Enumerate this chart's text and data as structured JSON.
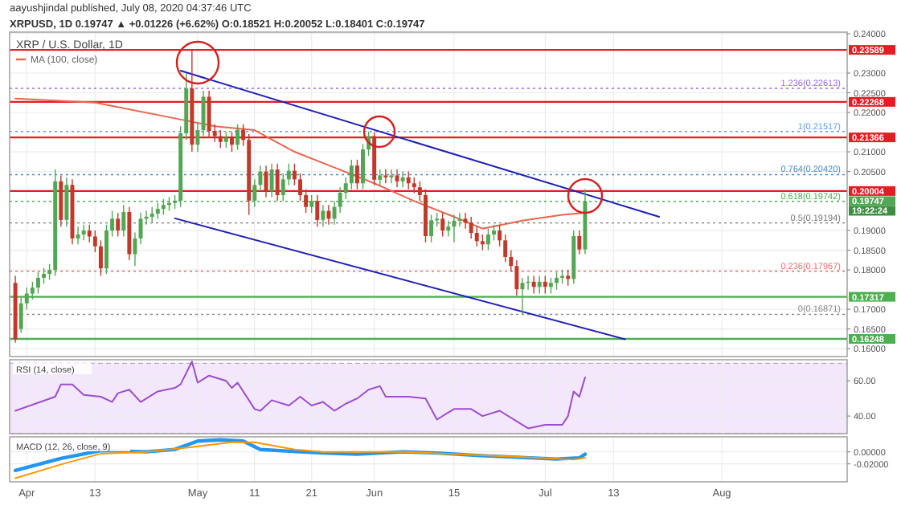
{
  "chart_data": [
    {
      "type": "candlestick",
      "title": "XRP / U.S. Dollar, 1D",
      "subtitle": "XRPUSD, 1D 0.19747 ▲ +0.01226 (+6.62%) O:0.18521 H:0.20052 L:0.18401 C:0.19747",
      "annotations": [
        "aayushjindal published, July 08, 2020 04:37:46 UTC",
        "0.19747",
        "19:22:24"
      ],
      "x": [
        "2020-03-30",
        "2020-03-31",
        "2020-04-01",
        "2020-04-02",
        "2020-04-03",
        "2020-04-04",
        "2020-04-05",
        "2020-04-06",
        "2020-04-07",
        "2020-04-08",
        "2020-04-09",
        "2020-04-10",
        "2020-04-11",
        "2020-04-12",
        "2020-04-13",
        "2020-04-14",
        "2020-04-15",
        "2020-04-16",
        "2020-04-17",
        "2020-04-18",
        "2020-04-19",
        "2020-04-20",
        "2020-04-21",
        "2020-04-22",
        "2020-04-23",
        "2020-04-24",
        "2020-04-25",
        "2020-04-26",
        "2020-04-27",
        "2020-04-28",
        "2020-04-29",
        "2020-04-30",
        "2020-05-01",
        "2020-05-02",
        "2020-05-03",
        "2020-05-04",
        "2020-05-05",
        "2020-05-06",
        "2020-05-07",
        "2020-05-08",
        "2020-05-09",
        "2020-05-10",
        "2020-05-11",
        "2020-05-12",
        "2020-05-13",
        "2020-05-14",
        "2020-05-15",
        "2020-05-16",
        "2020-05-17",
        "2020-05-18",
        "2020-05-19",
        "2020-05-20",
        "2020-05-21",
        "2020-05-22",
        "2020-05-23",
        "2020-05-24",
        "2020-05-25",
        "2020-05-26",
        "2020-05-27",
        "2020-05-28",
        "2020-05-29",
        "2020-05-30",
        "2020-05-31",
        "2020-06-01",
        "2020-06-02",
        "2020-06-03",
        "2020-06-04",
        "2020-06-05",
        "2020-06-06",
        "2020-06-07",
        "2020-06-08",
        "2020-06-09",
        "2020-06-10",
        "2020-06-11",
        "2020-06-12",
        "2020-06-13",
        "2020-06-14",
        "2020-06-15",
        "2020-06-16",
        "2020-06-17",
        "2020-06-18",
        "2020-06-19",
        "2020-06-20",
        "2020-06-21",
        "2020-06-22",
        "2020-06-23",
        "2020-06-24",
        "2020-06-25",
        "2020-06-26",
        "2020-06-27",
        "2020-06-28",
        "2020-06-29",
        "2020-06-30",
        "2020-07-01",
        "2020-07-02",
        "2020-07-03",
        "2020-07-04",
        "2020-07-05",
        "2020-07-06",
        "2020-07-07",
        "2020-07-08"
      ],
      "ohlc": [
        [
          0.1767,
          0.1785,
          0.1615,
          0.1624
        ],
        [
          0.165,
          0.173,
          0.164,
          0.1715
        ],
        [
          0.1715,
          0.1755,
          0.17,
          0.174
        ],
        [
          0.174,
          0.177,
          0.1725,
          0.1755
        ],
        [
          0.1755,
          0.1795,
          0.174,
          0.178
        ],
        [
          0.178,
          0.1805,
          0.1765,
          0.179
        ],
        [
          0.179,
          0.1815,
          0.1775,
          0.18
        ],
        [
          0.18,
          0.2055,
          0.1785,
          0.2025
        ],
        [
          0.2025,
          0.204,
          0.191,
          0.1927
        ],
        [
          0.1927,
          0.2035,
          0.191,
          0.2016
        ],
        [
          0.2016,
          0.203,
          0.1865,
          0.188
        ],
        [
          0.188,
          0.191,
          0.1865,
          0.189
        ],
        [
          0.189,
          0.1915,
          0.1875,
          0.19
        ],
        [
          0.19,
          0.1915,
          0.187,
          0.1885
        ],
        [
          0.1885,
          0.19,
          0.1845,
          0.186
        ],
        [
          0.186,
          0.1875,
          0.1785,
          0.1804
        ],
        [
          0.1804,
          0.1915,
          0.179,
          0.19
        ],
        [
          0.19,
          0.195,
          0.1885,
          0.193
        ],
        [
          0.193,
          0.1945,
          0.1885,
          0.19
        ],
        [
          0.19,
          0.1965,
          0.1885,
          0.1947
        ],
        [
          0.1947,
          0.196,
          0.1825,
          0.184
        ],
        [
          0.184,
          0.1895,
          0.181,
          0.188
        ],
        [
          0.188,
          0.1945,
          0.1865,
          0.193
        ],
        [
          0.193,
          0.195,
          0.1915,
          0.1935
        ],
        [
          0.1935,
          0.196,
          0.192,
          0.1943
        ],
        [
          0.1943,
          0.197,
          0.193,
          0.1955
        ],
        [
          0.1955,
          0.198,
          0.194,
          0.1965
        ],
        [
          0.1965,
          0.1985,
          0.195,
          0.197
        ],
        [
          0.197,
          0.199,
          0.1955,
          0.1976
        ],
        [
          0.1976,
          0.2165,
          0.196,
          0.2147
        ],
        [
          0.2147,
          0.23,
          0.213,
          0.2261
        ],
        [
          0.2261,
          0.23589,
          0.21,
          0.2118
        ],
        [
          0.2118,
          0.2175,
          0.21,
          0.2155
        ],
        [
          0.2155,
          0.2255,
          0.214,
          0.224
        ],
        [
          0.224,
          0.2255,
          0.2135,
          0.2153
        ],
        [
          0.2153,
          0.217,
          0.2125,
          0.214
        ],
        [
          0.214,
          0.2155,
          0.211,
          0.2125
        ],
        [
          0.2125,
          0.215,
          0.211,
          0.2135
        ],
        [
          0.2135,
          0.215,
          0.21,
          0.2118
        ],
        [
          0.2118,
          0.217,
          0.2105,
          0.2156
        ],
        [
          0.2156,
          0.217,
          0.2115,
          0.213
        ],
        [
          0.213,
          0.2145,
          0.194,
          0.1976
        ],
        [
          0.1976,
          0.203,
          0.196,
          0.2016
        ],
        [
          0.2016,
          0.2065,
          0.2,
          0.205
        ],
        [
          0.205,
          0.2065,
          0.1985,
          0.2
        ],
        [
          0.2,
          0.207,
          0.1985,
          0.2055
        ],
        [
          0.2055,
          0.207,
          0.1975,
          0.199
        ],
        [
          0.199,
          0.2045,
          0.1975,
          0.203
        ],
        [
          0.203,
          0.207,
          0.2015,
          0.2052
        ],
        [
          0.2052,
          0.207,
          0.2015,
          0.203
        ],
        [
          0.203,
          0.2045,
          0.1975,
          0.199
        ],
        [
          0.199,
          0.2005,
          0.1945,
          0.196
        ],
        [
          0.196,
          0.199,
          0.1945,
          0.1975
        ],
        [
          0.1975,
          0.199,
          0.191,
          0.1927
        ],
        [
          0.1927,
          0.1965,
          0.191,
          0.195
        ],
        [
          0.195,
          0.1965,
          0.1915,
          0.193
        ],
        [
          0.193,
          0.1975,
          0.1915,
          0.196
        ],
        [
          0.196,
          0.201,
          0.1945,
          0.1996
        ],
        [
          0.1996,
          0.2035,
          0.198,
          0.202
        ],
        [
          0.202,
          0.208,
          0.2005,
          0.2065
        ],
        [
          0.2065,
          0.208,
          0.2005,
          0.202
        ],
        [
          0.202,
          0.212,
          0.2005,
          0.2106
        ],
        [
          0.2106,
          0.21517,
          0.209,
          0.214
        ],
        [
          0.214,
          0.215,
          0.2015,
          0.2029
        ],
        [
          0.2029,
          0.2055,
          0.2015,
          0.204
        ],
        [
          0.204,
          0.2055,
          0.202,
          0.2035
        ],
        [
          0.2035,
          0.2055,
          0.202,
          0.204
        ],
        [
          0.204,
          0.2055,
          0.201,
          0.2025
        ],
        [
          0.2025,
          0.205,
          0.201,
          0.2035
        ],
        [
          0.2035,
          0.205,
          0.2005,
          0.202
        ],
        [
          0.202,
          0.2035,
          0.1995,
          0.201
        ],
        [
          0.201,
          0.2025,
          0.1975,
          0.199
        ],
        [
          0.199,
          0.2005,
          0.187,
          0.1886
        ],
        [
          0.1886,
          0.194,
          0.187,
          0.1926
        ],
        [
          0.1926,
          0.1945,
          0.191,
          0.193
        ],
        [
          0.193,
          0.1945,
          0.1885,
          0.19
        ],
        [
          0.19,
          0.1925,
          0.1885,
          0.191
        ],
        [
          0.191,
          0.194,
          0.187,
          0.1925
        ],
        [
          0.1925,
          0.1945,
          0.191,
          0.193
        ],
        [
          0.193,
          0.1945,
          0.1905,
          0.192
        ],
        [
          0.192,
          0.1935,
          0.188,
          0.1894
        ],
        [
          0.1894,
          0.191,
          0.186,
          0.1873
        ],
        [
          0.1873,
          0.189,
          0.185,
          0.1865
        ],
        [
          0.1865,
          0.1905,
          0.185,
          0.189
        ],
        [
          0.189,
          0.1915,
          0.1875,
          0.19
        ],
        [
          0.19,
          0.1915,
          0.186,
          0.1875
        ],
        [
          0.1875,
          0.189,
          0.182,
          0.1833
        ],
        [
          0.1833,
          0.185,
          0.1795,
          0.181
        ],
        [
          0.181,
          0.1825,
          0.1735,
          0.1751
        ],
        [
          0.1751,
          0.178,
          0.16871,
          0.1767
        ],
        [
          0.1767,
          0.1785,
          0.175,
          0.177
        ],
        [
          0.177,
          0.1785,
          0.174,
          0.1757
        ],
        [
          0.1757,
          0.1785,
          0.174,
          0.177
        ],
        [
          0.177,
          0.1785,
          0.174,
          0.1757
        ],
        [
          0.1757,
          0.178,
          0.174,
          0.1767
        ],
        [
          0.1767,
          0.1795,
          0.175,
          0.178
        ],
        [
          0.178,
          0.18,
          0.1765,
          0.1785
        ],
        [
          0.1785,
          0.18,
          0.176,
          0.1777
        ],
        [
          0.1777,
          0.19,
          0.1765,
          0.1886
        ],
        [
          0.1886,
          0.19,
          0.184,
          0.18521
        ],
        [
          0.18521,
          0.20052,
          0.18401,
          0.19747
        ]
      ],
      "series": [
        {
          "name": "MA (100, close)",
          "type": "line",
          "color": "#e8664f",
          "x": [
            "2020-03-30",
            "2020-04-13",
            "2020-04-27",
            "2020-05-04",
            "2020-05-11",
            "2020-05-18",
            "2020-05-25",
            "2020-06-01",
            "2020-06-08",
            "2020-06-15",
            "2020-06-20",
            "2020-06-27",
            "2020-07-04",
            "2020-07-08"
          ],
          "values": [
            0.2235,
            0.2225,
            0.2185,
            0.2165,
            0.2155,
            0.21,
            0.206,
            0.202,
            0.1975,
            0.1935,
            0.1905,
            0.1925,
            0.194,
            0.1945
          ]
        },
        {
          "type": "line",
          "color": "#1f1fb4",
          "x": [
            "2020-04-28",
            "2020-07-21"
          ],
          "values": [
            0.2306,
            0.1935
          ]
        },
        {
          "type": "line",
          "color": "#1f1fb4",
          "x": [
            "2020-04-27",
            "2020-07-15"
          ],
          "values": [
            0.1931,
            0.1624
          ]
        }
      ],
      "ref_lines": [
        {
          "axis": "y",
          "value": 0.23589,
          "label": "0.23589",
          "color": "#e51c23",
          "line_style": "solid"
        },
        {
          "axis": "y",
          "value": 0.22268,
          "label": "0.22268",
          "color": "#e51c23",
          "line_style": "solid"
        },
        {
          "axis": "y",
          "value": 0.21366,
          "label": "0.21366",
          "color": "#e51c23",
          "line_style": "solid"
        },
        {
          "axis": "y",
          "value": 0.20004,
          "label": "0.20004",
          "color": "#e51c23",
          "line_style": "solid"
        },
        {
          "axis": "y",
          "value": 0.17317,
          "label": "0.17317",
          "color": "#4caf50",
          "line_style": "solid"
        },
        {
          "axis": "y",
          "value": 0.16248,
          "label": "0.16248",
          "color": "#4caf50",
          "line_style": "solid"
        },
        {
          "axis": "y",
          "value": 0.22613,
          "label": "1.236(0.22613)",
          "color": "#9c6ade",
          "line_style": "dotted"
        },
        {
          "axis": "y",
          "value": 0.21517,
          "label": "1(0.21517)",
          "color": "#5d9cec",
          "line_style": "dotted"
        },
        {
          "axis": "y",
          "value": 0.2042,
          "label": "0.764(0.20420)",
          "color": "#4a88c8",
          "line_style": "dotted"
        },
        {
          "axis": "y",
          "value": 0.19742,
          "label": "0.618(0.19742)",
          "color": "#4caf50",
          "line_style": "dotted"
        },
        {
          "axis": "y",
          "value": 0.19194,
          "label": "0.5(0.19194)",
          "color": "#777777",
          "line_style": "dotted"
        },
        {
          "axis": "y",
          "value": 0.17967,
          "label": "0.236(0.17967)",
          "color": "#e57373",
          "line_style": "dotted"
        },
        {
          "axis": "y",
          "value": 0.16871,
          "label": "0(0.16871)",
          "color": "#888888",
          "line_style": "dotted"
        }
      ],
      "xlim": [
        "2020-03-29",
        "2020-08-23"
      ],
      "ylim": [
        0.158,
        0.2404
      ],
      "yticks": [
        {
          "value": 0.16,
          "label": "0.16000"
        },
        {
          "value": 0.165,
          "label": "0.16500"
        },
        {
          "value": 0.17,
          "label": "0.17000"
        },
        {
          "value": 0.18,
          "label": "0.18000"
        },
        {
          "value": 0.185,
          "label": "0.18500"
        },
        {
          "value": 0.19,
          "label": "0.19000"
        },
        {
          "value": 0.205,
          "label": "0.20500"
        },
        {
          "value": 0.21,
          "label": "0.21000"
        },
        {
          "value": 0.22,
          "label": "0.22000"
        },
        {
          "value": 0.225,
          "label": "0.22500"
        },
        {
          "value": 0.23,
          "label": "0.23000"
        },
        {
          "value": 0.24,
          "label": "0.24000"
        }
      ],
      "grid": true,
      "legend": "top left",
      "tick_labels": "y"
    },
    {
      "type": "line",
      "title": "RSI (14, close)",
      "series": [
        {
          "color": "#9c4dcc",
          "x": [
            "2020-03-30",
            "2020-04-06",
            "2020-04-07",
            "2020-04-09",
            "2020-04-11",
            "2020-04-14",
            "2020-04-16",
            "2020-04-17",
            "2020-04-19",
            "2020-04-21",
            "2020-04-24",
            "2020-04-27",
            "2020-04-28",
            "2020-04-30",
            "2020-05-01",
            "2020-05-03",
            "2020-05-06",
            "2020-05-07",
            "2020-05-08",
            "2020-05-11",
            "2020-05-12",
            "2020-05-14",
            "2020-05-17",
            "2020-05-19",
            "2020-05-21",
            "2020-05-23",
            "2020-05-25",
            "2020-05-27",
            "2020-05-29",
            "2020-05-31",
            "2020-06-02",
            "2020-06-03",
            "2020-06-07",
            "2020-06-10",
            "2020-06-12",
            "2020-06-14",
            "2020-06-15",
            "2020-06-18",
            "2020-06-20",
            "2020-06-23",
            "2020-06-26",
            "2020-06-28",
            "2020-07-01",
            "2020-07-04",
            "2020-07-05",
            "2020-07-06",
            "2020-07-07",
            "2020-07-08"
          ],
          "values": [
            43,
            51,
            58,
            58,
            52,
            51,
            48,
            53,
            55,
            48,
            54,
            56,
            58,
            71,
            59,
            63,
            60,
            56,
            59,
            44,
            43,
            49,
            46,
            51,
            46,
            48,
            43,
            47,
            50,
            55,
            57,
            51,
            51,
            50,
            38,
            42,
            44,
            44,
            40,
            43,
            37,
            33,
            35,
            35,
            40,
            54,
            51,
            62
          ]
        }
      ],
      "bands": [
        {
          "axis": "y",
          "from": 30,
          "to": 70,
          "color": "#f3e8fb"
        }
      ],
      "xlim": [
        "2020-03-29",
        "2020-08-23"
      ],
      "ylim": [
        30,
        72
      ],
      "yticks": [
        {
          "value": 40,
          "label": "40.00"
        },
        {
          "value": 60,
          "label": "60.00"
        }
      ],
      "grid": true,
      "tick_labels": "y"
    },
    {
      "type": "line",
      "title": "MACD (12, 26, close, 9)",
      "series": [
        {
          "color": "#2196f3",
          "x": [
            "2020-03-30",
            "2020-04-07",
            "2020-04-14",
            "2020-04-22",
            "2020-04-27",
            "2020-05-01",
            "2020-05-05",
            "2020-05-09",
            "2020-05-12",
            "2020-05-19",
            "2020-05-23",
            "2020-05-29",
            "2020-06-06",
            "2020-06-12",
            "2020-06-19",
            "2020-06-26",
            "2020-07-03",
            "2020-07-07",
            "2020-07-08"
          ],
          "values": [
            -0.031,
            -0.011,
            0.002,
            0,
            0.004,
            0.018,
            0.02,
            0.018,
            0.004,
            0,
            -0.002,
            -0.004,
            0,
            -0.002,
            -0.006,
            -0.009,
            -0.012,
            -0.01,
            -0.004
          ]
        },
        {
          "color": "#ff9800",
          "x": [
            "2020-03-30",
            "2020-04-07",
            "2020-04-14",
            "2020-04-22",
            "2020-04-30",
            "2020-05-07",
            "2020-05-11",
            "2020-05-18",
            "2020-05-23",
            "2020-06-06",
            "2020-06-16",
            "2020-06-26",
            "2020-07-06",
            "2020-07-08"
          ],
          "values": [
            -0.044,
            -0.021,
            -0.003,
            0,
            0.008,
            0.016,
            0.016,
            0.004,
            0,
            0,
            -0.004,
            -0.008,
            -0.013,
            -0.01
          ]
        }
      ],
      "xlim": [
        "2020-03-29",
        "2020-08-23"
      ],
      "ylim": [
        -0.05,
        0.025
      ],
      "xticks": [
        {
          "value": "2020-04-01",
          "label": "Apr"
        },
        {
          "value": "2020-04-13",
          "label": "13"
        },
        {
          "value": "2020-05-01",
          "label": "May"
        },
        {
          "value": "2020-05-11",
          "label": "11"
        },
        {
          "value": "2020-05-21",
          "label": "21"
        },
        {
          "value": "2020-06-01",
          "label": "Jun"
        },
        {
          "value": "2020-06-15",
          "label": "15"
        },
        {
          "value": "2020-07-01",
          "label": "Jul"
        },
        {
          "value": "2020-07-13",
          "label": "13"
        },
        {
          "value": "2020-08-01",
          "label": "Aug"
        }
      ],
      "yticks": [
        {
          "value": -0.02,
          "label": "-0.02000"
        },
        {
          "value": 0,
          "label": "0.00000"
        }
      ],
      "grid": true
    }
  ]
}
